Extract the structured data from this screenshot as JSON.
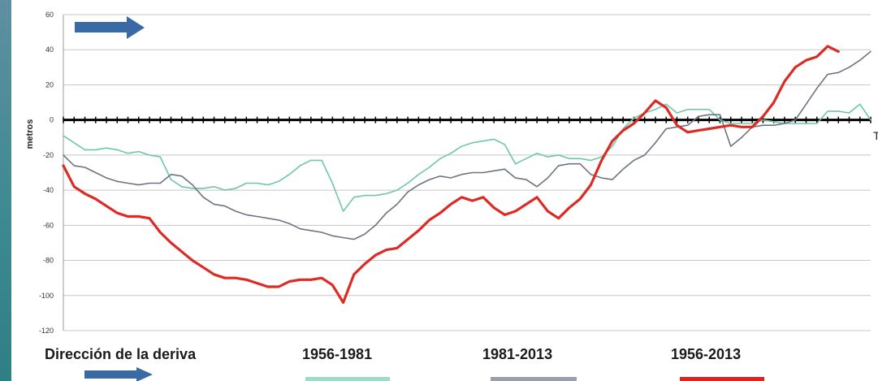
{
  "chart_data": {
    "type": "line",
    "ylabel": "metros",
    "x_end_label": "T",
    "ylim": [
      -120,
      60
    ],
    "yticks": [
      60,
      40,
      20,
      0,
      -20,
      -40,
      -60,
      -80,
      -100,
      -120
    ],
    "ytick_labels": [
      "60",
      "40",
      "20",
      "0",
      "-20",
      "-40",
      "-60",
      "-80",
      "-100",
      "-120"
    ],
    "grid": true,
    "zero_line": true,
    "legend_placement": "bottom",
    "direction_label": "Dirección de la deriva",
    "series": [
      {
        "name": "1956-1981",
        "color": "#6ec8a6",
        "values": [
          -9,
          -13,
          -17,
          -17,
          -16,
          -17,
          -19,
          -18,
          -20,
          -21,
          -34,
          -38,
          -39,
          -39,
          -38,
          -40,
          -39,
          -36,
          -36,
          -37,
          -35,
          -31,
          -26,
          -23,
          -23,
          -36,
          -52,
          -44,
          -43,
          -43,
          -42,
          -40,
          -36,
          -31,
          -27,
          -22,
          -19,
          -15,
          -13,
          -12,
          -11,
          -14,
          -25,
          -22,
          -19,
          -21,
          -20,
          -22,
          -22,
          -23,
          -21,
          -15,
          -5,
          1,
          4,
          6,
          9,
          4,
          6,
          6,
          6,
          0,
          -2,
          -2,
          -2,
          0,
          -1,
          -2,
          -2,
          -2,
          -2,
          5,
          5,
          4,
          9,
          0
        ]
      },
      {
        "name": "1981-2013",
        "color": "#6d7381",
        "values": [
          -20,
          -26,
          -27,
          -30,
          -33,
          -35,
          -36,
          -37,
          -36,
          -36,
          -31,
          -32,
          -37,
          -44,
          -48,
          -49,
          -52,
          -54,
          -55,
          -56,
          -57,
          -59,
          -62,
          -63,
          -64,
          -66,
          -67,
          -68,
          -65,
          -60,
          -53,
          -48,
          -41,
          -37,
          -34,
          -32,
          -33,
          -31,
          -30,
          -30,
          -29,
          -28,
          -33,
          -34,
          -38,
          -33,
          -26,
          -25,
          -25,
          -31,
          -33,
          -34,
          -28,
          -23,
          -20,
          -13,
          -5,
          -4,
          -3,
          2,
          3,
          3,
          -15,
          -10,
          -4,
          -3,
          -3,
          -2,
          0,
          9,
          18,
          26,
          27,
          30,
          34,
          39
        ]
      },
      {
        "name": "1956-2013",
        "color": "#dc2a24",
        "values": [
          -26,
          -38,
          -42,
          -45,
          -49,
          -53,
          -55,
          -55,
          -56,
          -64,
          -70,
          -75,
          -80,
          -84,
          -88,
          -90,
          -90,
          -91,
          -93,
          -95,
          -95,
          -92,
          -91,
          -91,
          -90,
          -94,
          -104,
          -88,
          -82,
          -77,
          -74,
          -73,
          -68,
          -63,
          -57,
          -53,
          -48,
          -44,
          -46,
          -44,
          -50,
          -54,
          -52,
          -48,
          -44,
          -52,
          -56,
          -50,
          -45,
          -37,
          -23,
          -12,
          -6,
          -2,
          4,
          11,
          7,
          -3,
          -7,
          -6,
          -5,
          -4,
          -3,
          -4,
          -4,
          2,
          10,
          22,
          30,
          34,
          36,
          42,
          39
        ]
      }
    ]
  },
  "legend": {
    "direction_label": "Dirección de la deriva",
    "series1": "1956-1981",
    "series2": "1981-2013",
    "series3": "1956-2013"
  },
  "colors": {
    "arrow": "#3a6aa4",
    "grid": "#c8c8c8",
    "zero_line": "#000000"
  }
}
